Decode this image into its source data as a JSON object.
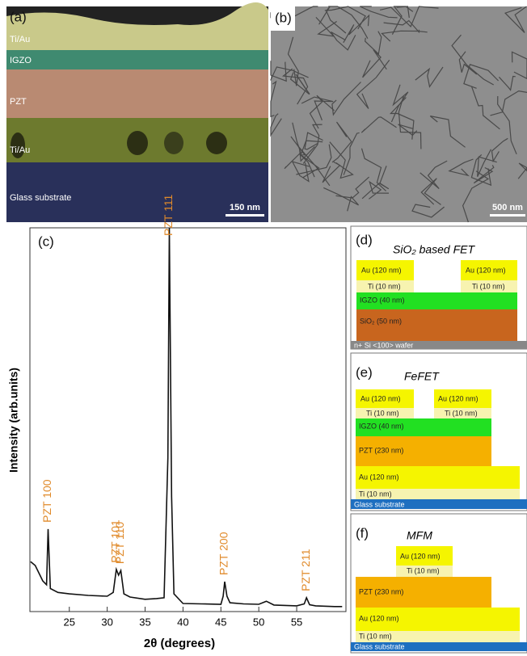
{
  "panel_a": {
    "label": "(a)",
    "layers": [
      "Ti/Au",
      "IGZO",
      "PZT",
      "Ti/Au",
      "Glass substrate"
    ],
    "scale_bar": "150 nm"
  },
  "panel_b": {
    "label": "(b)",
    "scale_bar": "500 nm"
  },
  "chart_data": {
    "type": "line",
    "label": "(c)",
    "x_label": "2θ (degrees)",
    "y_label": "Intensity (arb.units)",
    "color": "#111111",
    "x": [
      19.9,
      20.5,
      21.5,
      22.0,
      22.2,
      22.5,
      23.5,
      25.0,
      27.5,
      30.0,
      30.8,
      31.2,
      31.5,
      31.8,
      32.2,
      33.0,
      35.0,
      36.5,
      37.5,
      38.0,
      38.2,
      38.5,
      38.8,
      40.0,
      42.5,
      45.0,
      45.3,
      45.5,
      45.8,
      46.2,
      48.0,
      50.0,
      51.0,
      52.0,
      55.0,
      56.0,
      56.3,
      56.7,
      57.5,
      60.0,
      61.0
    ],
    "values": [
      13,
      12,
      8,
      7,
      21.5,
      6,
      5,
      4.6,
      4.2,
      4,
      5,
      11,
      9.5,
      10.7,
      4.6,
      3.8,
      3.2,
      3.4,
      3.6,
      40,
      100,
      30,
      4.6,
      2.1,
      2.0,
      1.9,
      4,
      7.8,
      4,
      2.3,
      2.0,
      1.9,
      2.7,
      1.7,
      1.5,
      2,
      3.6,
      1.8,
      1.5,
      1.3,
      1.3
    ],
    "xlim": [
      19.8,
      61.5
    ],
    "xticks": [
      25,
      30,
      35,
      40,
      45,
      50,
      55
    ],
    "ylim": [
      0,
      100
    ],
    "annotations": [
      {
        "text": "PZT 100",
        "x": 22.2
      },
      {
        "text": "PZT 101",
        "x": 31.2
      },
      {
        "text": "PZT 110",
        "x": 31.8
      },
      {
        "text": "PZT 111",
        "x": 38.2
      },
      {
        "text": "PZT 200",
        "x": 45.5
      },
      {
        "text": "PZT 211",
        "x": 56.3
      }
    ],
    "annotation_color": "#e08a2a"
  },
  "panel_d": {
    "label": "(d)",
    "title": "SiO₂ based FET",
    "layers": [
      "Au (120 nm)",
      "Ti (10 nm)",
      "Au (120 nm)",
      "Ti (10 nm)",
      "IGZO (40 nm)",
      "SiO₂ (50 nm)",
      "n+ Si <100> wafer"
    ]
  },
  "panel_e": {
    "label": "(e)",
    "title": "FeFET",
    "layers": [
      "Au (120 nm)",
      "Ti (10 nm)",
      "Au (120 nm)",
      "Ti (10 nm)",
      "IGZO (40 nm)",
      "PZT (230 nm)",
      "Au (120 nm)",
      "Ti (10 nm)",
      "Glass substrate"
    ]
  },
  "panel_f": {
    "label": "(f)",
    "title": "MFM",
    "layers": [
      "Au (120 nm)",
      "Ti (10 nm)",
      "PZT (230 nm)",
      "Au (120 nm)",
      "Ti (10 nm)",
      "Glass substrate"
    ]
  }
}
